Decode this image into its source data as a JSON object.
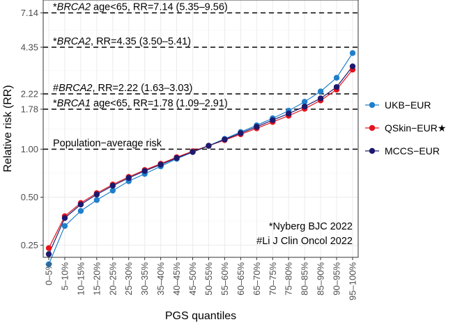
{
  "chart_data": {
    "type": "line",
    "xlabel": "PGS quantiles",
    "ylabel": "Relative risk (RR)",
    "y_scale": "log",
    "ylim": [
      0.21,
      8.6
    ],
    "y_ticks": [
      0.25,
      0.5,
      1.0,
      1.78,
      2.22,
      4.35,
      7.14
    ],
    "y_tick_labels": [
      "0.25",
      "0.50",
      "1.00",
      "1.78",
      "2.22",
      "4.35",
      "7.14"
    ],
    "grid": true,
    "legend_position": "right",
    "categories": [
      "0–5%",
      "5–10%",
      "10–15%",
      "15–20%",
      "20–25%",
      "25–30%",
      "30–35%",
      "35–40%",
      "40–45%",
      "45–50%",
      "50–55%",
      "55–60%",
      "60–65%",
      "65–70%",
      "70–75%",
      "75–80%",
      "80–85%",
      "85–90%",
      "90–95%",
      "95–100%"
    ],
    "series": [
      {
        "name": "UKB−EUR",
        "color": "#1f7fca",
        "values": [
          0.19,
          0.33,
          0.41,
          0.48,
          0.55,
          0.63,
          0.7,
          0.78,
          0.87,
          0.96,
          1.05,
          1.16,
          1.28,
          1.41,
          1.56,
          1.74,
          1.98,
          2.3,
          2.8,
          4.0
        ]
      },
      {
        "name": "QSkin−EUR★",
        "color": "#e4141e",
        "values": [
          0.24,
          0.38,
          0.46,
          0.53,
          0.6,
          0.67,
          0.74,
          0.81,
          0.89,
          0.97,
          1.05,
          1.14,
          1.24,
          1.35,
          1.48,
          1.62,
          1.79,
          2.02,
          2.36,
          3.15
        ]
      },
      {
        "name": "MCCS−EUR",
        "color": "#1c1a6e",
        "values": [
          0.22,
          0.37,
          0.45,
          0.52,
          0.59,
          0.66,
          0.73,
          0.8,
          0.88,
          0.96,
          1.05,
          1.15,
          1.26,
          1.38,
          1.52,
          1.67,
          1.85,
          2.08,
          2.45,
          3.3
        ]
      }
    ],
    "reference_lines": [
      {
        "value": 7.14,
        "label_parts": [
          "*",
          "BRCA2",
          " age<65, RR=7.14 (5.35–9.56)"
        ]
      },
      {
        "value": 4.35,
        "label_parts": [
          "*",
          "BRCA2",
          ", RR=4.35 (3.50–5.41)"
        ]
      },
      {
        "value": 2.22,
        "label_parts": [
          "#",
          "BRCA2",
          ", RR=2.22 (1.63–3.03)"
        ]
      },
      {
        "value": 1.78,
        "label_parts": [
          "*",
          "BRCA1",
          " age<65, RR=1.78 (1.09–2.91)"
        ]
      },
      {
        "value": 1.0,
        "label_parts": [
          "",
          "",
          "Population−average risk"
        ]
      }
    ],
    "annotations": [
      "*Nyberg BJC 2022",
      "#Li J Clin Oncol 2022"
    ]
  }
}
